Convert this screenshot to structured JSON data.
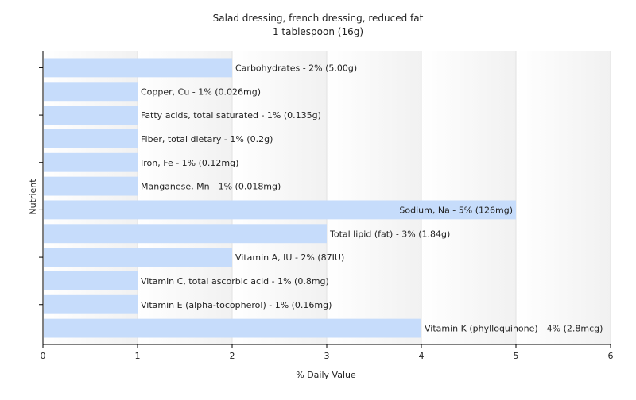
{
  "chart_data": {
    "type": "bar",
    "orientation": "horizontal",
    "title": "Salad dressing, french dressing, reduced fat",
    "subtitle": "1 tablespoon (16g)",
    "xlabel": "% Daily Value",
    "ylabel": "Nutrient",
    "xlim": [
      0,
      6
    ],
    "xticks": [
      "0",
      "1",
      "2",
      "3",
      "4",
      "5",
      "6"
    ],
    "grid": true,
    "bar_color": "#c6dcfb",
    "categories": [
      "Carbohydrates",
      "Copper, Cu",
      "Fatty acids, total saturated",
      "Fiber, total dietary",
      "Iron, Fe",
      "Manganese, Mn",
      "Sodium, Na",
      "Total lipid (fat)",
      "Vitamin A, IU",
      "Vitamin C, total ascorbic acid",
      "Vitamin E (alpha-tocopherol)",
      "Vitamin K (phylloquinone)"
    ],
    "values": [
      2,
      1,
      1,
      1,
      1,
      1,
      5,
      3,
      2,
      1,
      1,
      4
    ],
    "labels": [
      "Carbohydrates - 2% (5.00g)",
      "Copper, Cu - 1% (0.026mg)",
      "Fatty acids, total saturated - 1% (0.135g)",
      "Fiber, total dietary - 1% (0.2g)",
      "Iron, Fe - 1% (0.12mg)",
      "Manganese, Mn - 1% (0.018mg)",
      "Sodium, Na - 5% (126mg)",
      "Total lipid (fat) - 3% (1.84g)",
      "Vitamin A, IU - 2% (87IU)",
      "Vitamin C, total ascorbic acid - 1% (0.8mg)",
      "Vitamin E (alpha-tocopherol) - 1% (0.16mg)",
      "Vitamin K (phylloquinone) - 4% (2.8mcg)"
    ]
  }
}
